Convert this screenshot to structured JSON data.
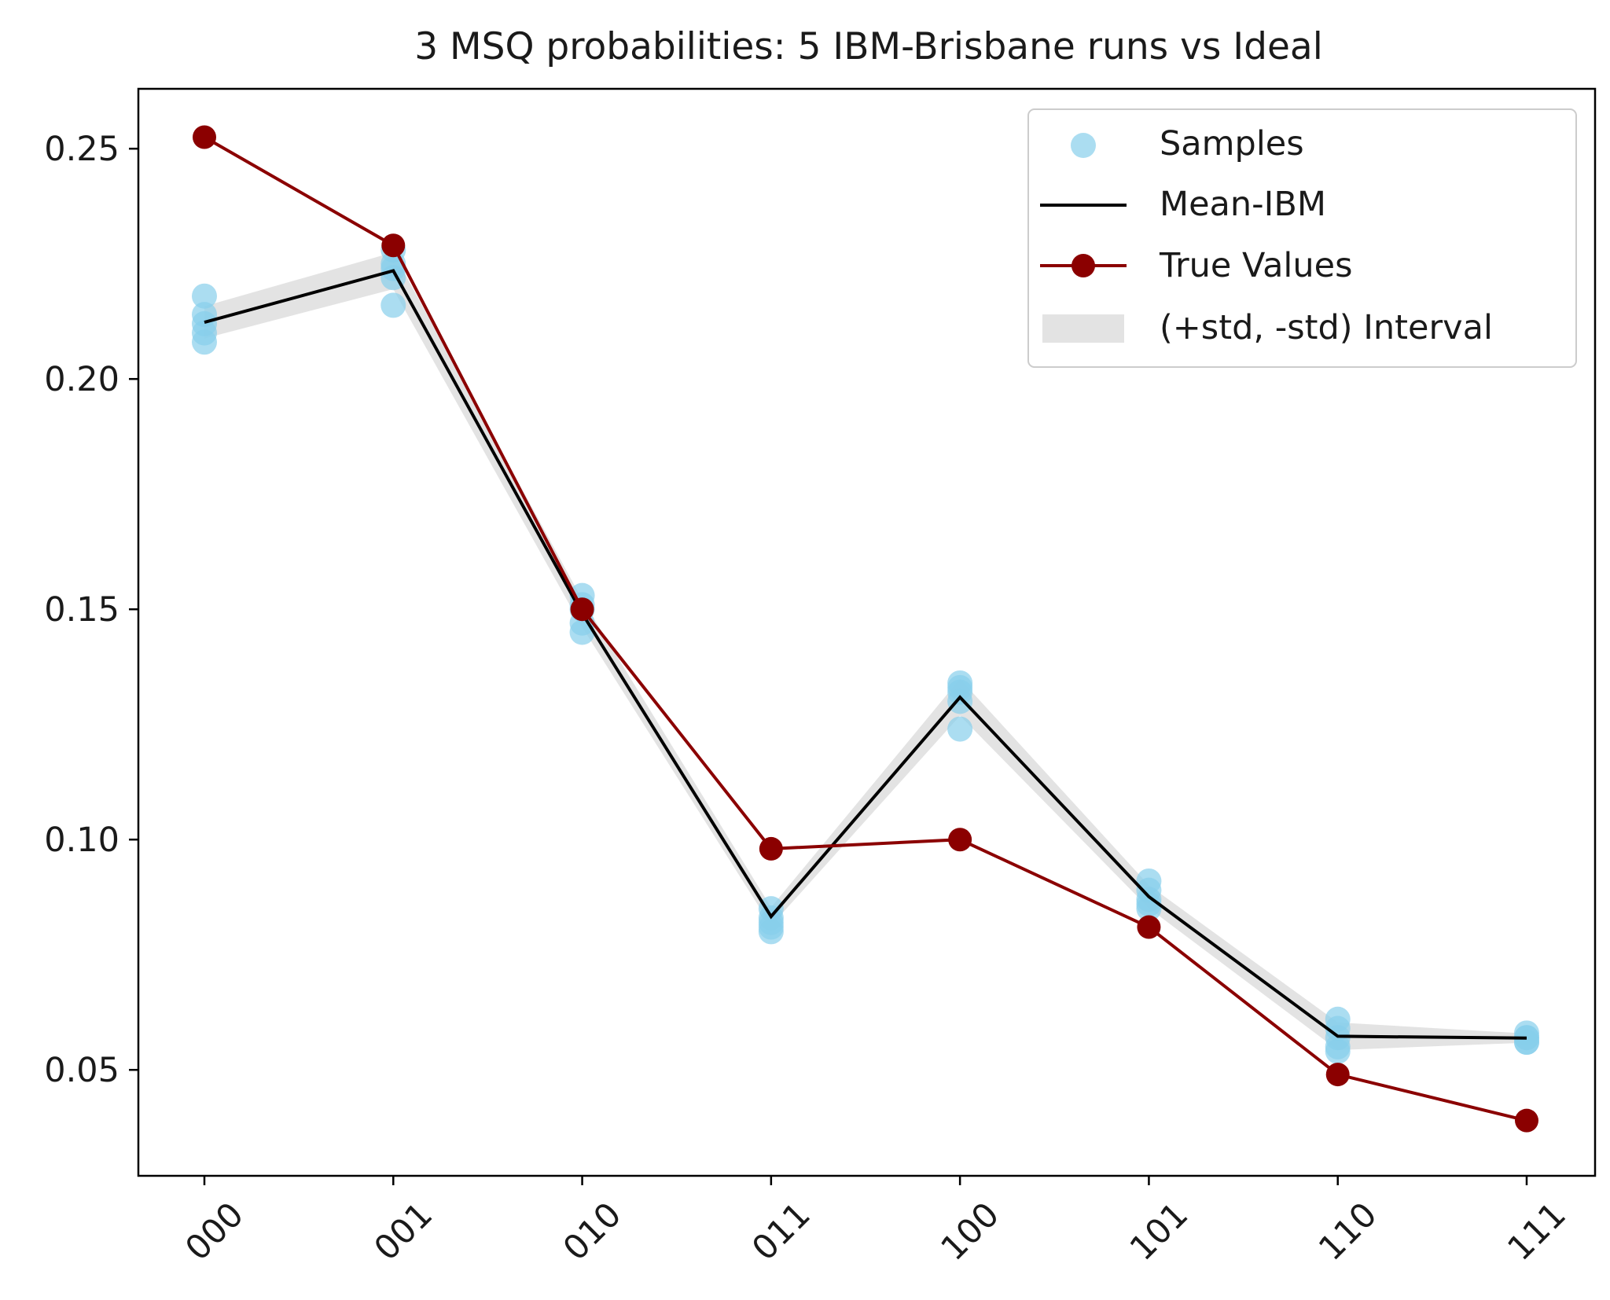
{
  "chart_data": {
    "type": "line",
    "title": "3 MSQ probabilities: 5 IBM-Brisbane runs vs Ideal",
    "xlabel": "",
    "ylabel": "",
    "categories": [
      "000",
      "001",
      "010",
      "011",
      "100",
      "101",
      "110",
      "111"
    ],
    "ylim": [
      0.027,
      0.263
    ],
    "yticks": [
      "0.05",
      "0.10",
      "0.15",
      "0.20",
      "0.25"
    ],
    "grid": false,
    "legend_position": "top-right",
    "colors": {
      "samples": "#87ceeb",
      "mean": "#000000",
      "true": "#8b0000",
      "interval": "#cccccc"
    },
    "series": [
      {
        "name": "Samples",
        "kind": "scatter",
        "values": [
          [
            0.218,
            0.214,
            0.212,
            0.21,
            0.208
          ],
          [
            0.228,
            0.225,
            0.224,
            0.222,
            0.216
          ],
          [
            0.153,
            0.151,
            0.15,
            0.147,
            0.145
          ],
          [
            0.085,
            0.083,
            0.082,
            0.081,
            0.08
          ],
          [
            0.134,
            0.133,
            0.132,
            0.13,
            0.124
          ],
          [
            0.091,
            0.089,
            0.087,
            0.086,
            0.085
          ],
          [
            0.061,
            0.059,
            0.057,
            0.055,
            0.054
          ],
          [
            0.058,
            0.057,
            0.057,
            0.056,
            0.056
          ]
        ]
      },
      {
        "name": "Mean-IBM",
        "kind": "line",
        "values": [
          0.2123,
          0.2235,
          0.1491,
          0.0833,
          0.1309,
          0.0876,
          0.0573,
          0.0569
        ]
      },
      {
        "name": "True Values",
        "kind": "line-marker",
        "values": [
          0.2525,
          0.229,
          0.15,
          0.098,
          0.1,
          0.081,
          0.049,
          0.039
        ]
      },
      {
        "name": "(+std, -std) Interval",
        "kind": "band",
        "std": [
          0.0035,
          0.004,
          0.003,
          0.002,
          0.004,
          0.0025,
          0.003,
          0.001
        ]
      }
    ]
  }
}
